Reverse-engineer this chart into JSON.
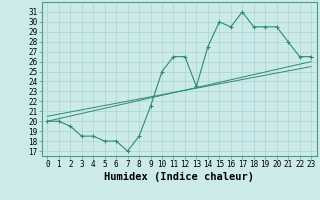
{
  "xlabel": "Humidex (Indice chaleur)",
  "x_ticks": [
    0,
    1,
    2,
    3,
    4,
    5,
    6,
    7,
    8,
    9,
    10,
    11,
    12,
    13,
    14,
    15,
    16,
    17,
    18,
    19,
    20,
    21,
    22,
    23
  ],
  "y_ticks": [
    17,
    18,
    19,
    20,
    21,
    22,
    23,
    24,
    25,
    26,
    27,
    28,
    29,
    30,
    31
  ],
  "ylim": [
    16.5,
    32.0
  ],
  "xlim": [
    -0.5,
    23.5
  ],
  "main_line_x": [
    0,
    1,
    2,
    3,
    4,
    5,
    6,
    7,
    8,
    9,
    10,
    11,
    12,
    13,
    14,
    15,
    16,
    17,
    18,
    19,
    20,
    21,
    22,
    23
  ],
  "main_line_y": [
    20.0,
    20.0,
    19.5,
    18.5,
    18.5,
    18.0,
    18.0,
    17.0,
    18.5,
    21.5,
    25.0,
    26.5,
    26.5,
    23.5,
    27.5,
    30.0,
    29.5,
    31.0,
    29.5,
    29.5,
    29.5,
    28.0,
    26.5,
    26.5
  ],
  "trend1_x": [
    0,
    23
  ],
  "trend1_y": [
    20.0,
    26.0
  ],
  "trend2_x": [
    0,
    23
  ],
  "trend2_y": [
    20.5,
    25.5
  ],
  "line_color": "#2e8b6e",
  "bg_color": "#cceaea",
  "grid_color": "#aad4d4",
  "tick_fontsize": 5.5,
  "xlabel_fontsize": 7.5
}
